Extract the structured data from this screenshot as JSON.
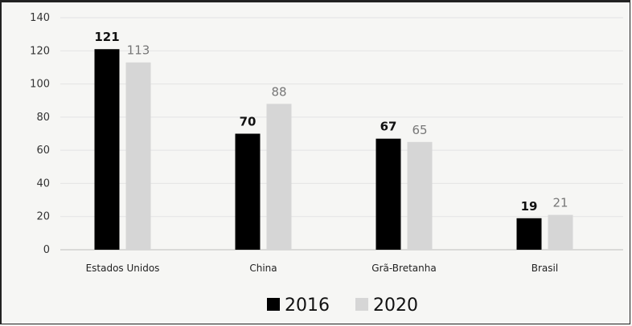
{
  "chart_data": {
    "type": "bar",
    "categories": [
      "Estados Unidos",
      "China",
      "Grã-Bretanha",
      "Brasil"
    ],
    "series": [
      {
        "name": "2016",
        "values": [
          121,
          70,
          67,
          19
        ],
        "color": "#000000"
      },
      {
        "name": "2020",
        "values": [
          113,
          88,
          65,
          21
        ],
        "color": "#d6d6d6"
      }
    ],
    "ylim": [
      0,
      140
    ],
    "yticks": [
      "0",
      "20",
      "40",
      "60",
      "80",
      "100",
      "120",
      "140"
    ],
    "grid": true,
    "legend": "bottom"
  }
}
